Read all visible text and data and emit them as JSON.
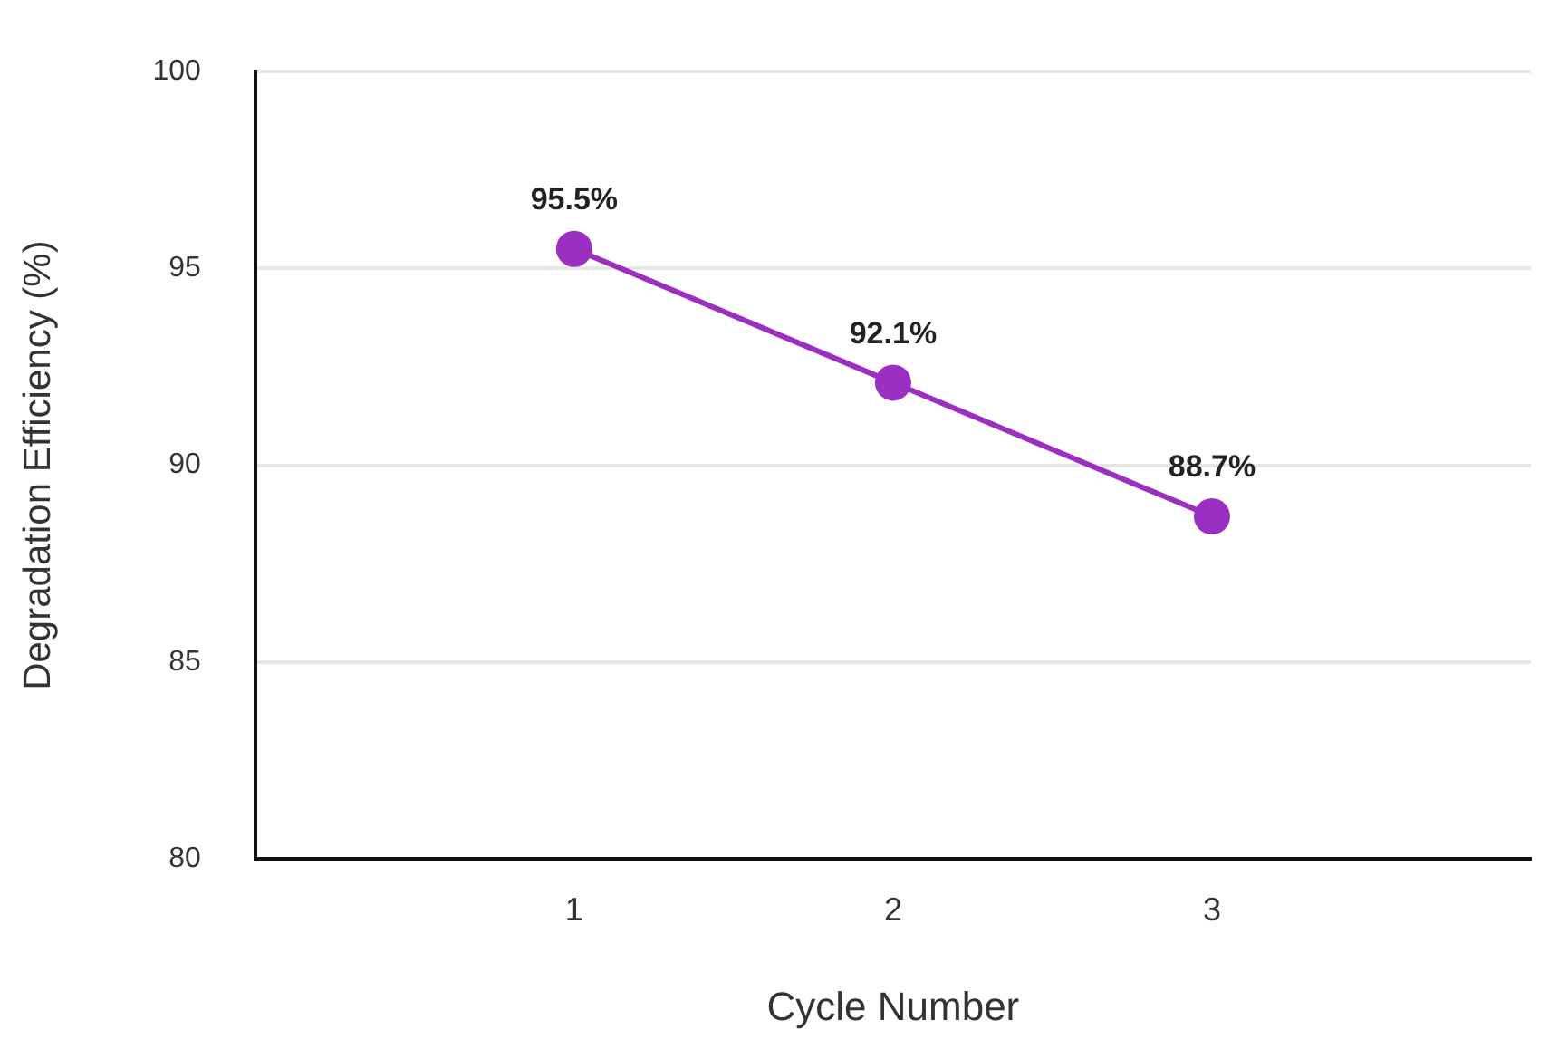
{
  "chart_data": {
    "type": "line",
    "xlabel": "Cycle Number",
    "ylabel": "Degradation Efficiency (%)",
    "x": [
      1,
      2,
      3
    ],
    "series": [
      {
        "color": "#9b2fc2",
        "values": [
          95.5,
          92.1,
          88.7
        ],
        "value_labels": [
          "95.5%",
          "92.1%",
          "88.7%"
        ]
      }
    ],
    "xlim": [
      0,
      4
    ],
    "xticks": [
      1,
      2,
      3
    ],
    "ylim": [
      80,
      100
    ],
    "yticks": [
      80,
      85,
      90,
      95,
      100
    ],
    "grid": "y",
    "legend": false,
    "marker": "circle",
    "line_style": "solid"
  }
}
